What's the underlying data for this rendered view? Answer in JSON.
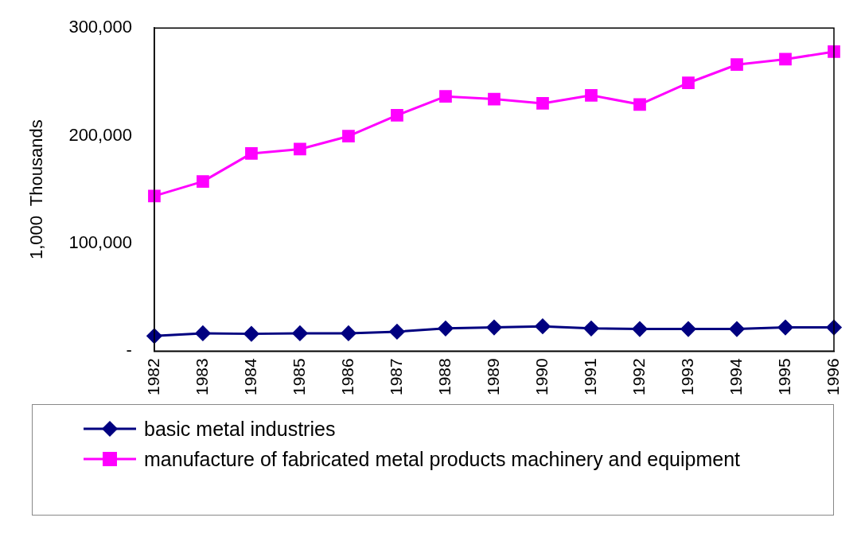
{
  "chart_data": {
    "type": "line",
    "ylabel": "1,000  Thousands",
    "categories": [
      "1982",
      "1983",
      "1984",
      "1985",
      "1986",
      "1987",
      "1988",
      "1989",
      "1990",
      "1991",
      "1992",
      "1993",
      "1994",
      "1995",
      "1996"
    ],
    "series": [
      {
        "name": "basic metal industries",
        "color": "#000080",
        "marker": "diamond",
        "values": [
          14000,
          16500,
          16000,
          16500,
          16500,
          18000,
          21000,
          22000,
          23000,
          21000,
          20500,
          20500,
          20500,
          22000,
          22000
        ]
      },
      {
        "name": "manufacture of fabricated metal products machinery and equipment",
        "color": "#ff00ff",
        "marker": "square",
        "values": [
          144000,
          157500,
          183500,
          187500,
          199500,
          219000,
          236500,
          234000,
          230000,
          237500,
          229000,
          249000,
          266000,
          271000,
          278000
        ]
      }
    ],
    "ylim": [
      0,
      300000
    ],
    "yticks": [
      {
        "value": 0,
        "label": "-"
      },
      {
        "value": 100000,
        "label": "100,000"
      },
      {
        "value": 200000,
        "label": "200,000"
      },
      {
        "value": 300000,
        "label": "300,000"
      }
    ],
    "grid": false,
    "legend": "bottom",
    "line_style": "solid"
  }
}
